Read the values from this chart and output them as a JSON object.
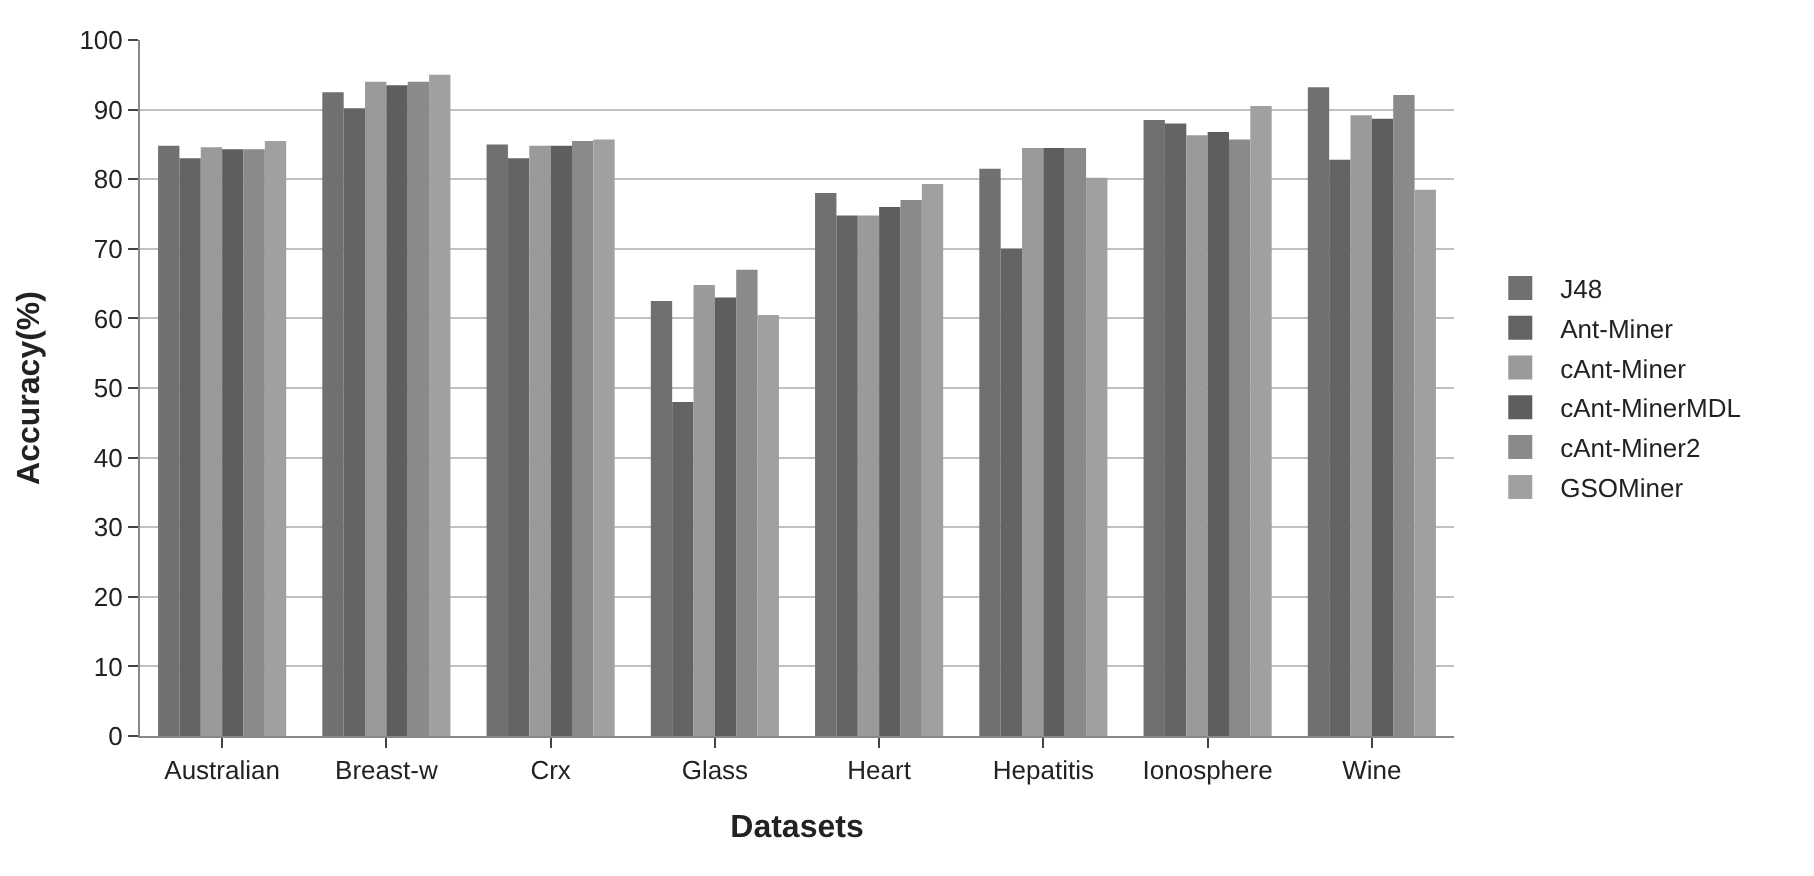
{
  "chart_data": {
    "type": "bar",
    "xlabel": "Datasets",
    "ylabel": "Accuracy(%)",
    "categories": [
      "Australian",
      "Breast-w",
      "Crx",
      "Glass",
      "Heart",
      "Hepatitis",
      "Ionosphere",
      "Wine"
    ],
    "series": [
      {
        "name": "J48",
        "color": "#707070",
        "values": [
          84.8,
          92.5,
          85,
          62.5,
          78,
          81.5,
          88.5,
          93.2
        ]
      },
      {
        "name": "Ant-Miner",
        "color": "#646464",
        "values": [
          83,
          90.2,
          83,
          48,
          74.8,
          70,
          88,
          82.8
        ]
      },
      {
        "name": "cAnt-Miner",
        "color": "#9a9a9a",
        "values": [
          84.6,
          94,
          84.8,
          64.8,
          74.8,
          84.5,
          86.3,
          89.2
        ]
      },
      {
        "name": "cAnt-MinerMDL",
        "color": "#5e5e5e",
        "values": [
          84.3,
          93.5,
          84.8,
          63,
          76,
          84.5,
          86.8,
          88.7
        ]
      },
      {
        "name": "cAnt-Miner2",
        "color": "#8a8a8a",
        "values": [
          84.3,
          94,
          85.5,
          67,
          77,
          84.5,
          85.7,
          92.1
        ]
      },
      {
        "name": "GSOMiner",
        "color": "#a0a0a0",
        "values": [
          85.5,
          95,
          85.7,
          60.5,
          79.3,
          80.2,
          90.5,
          78.5
        ]
      }
    ],
    "ylim": [
      0,
      100
    ],
    "yticks": [
      0,
      10,
      20,
      30,
      40,
      50,
      60,
      70,
      80,
      90,
      100
    ],
    "grid": "y",
    "legend": "right"
  }
}
